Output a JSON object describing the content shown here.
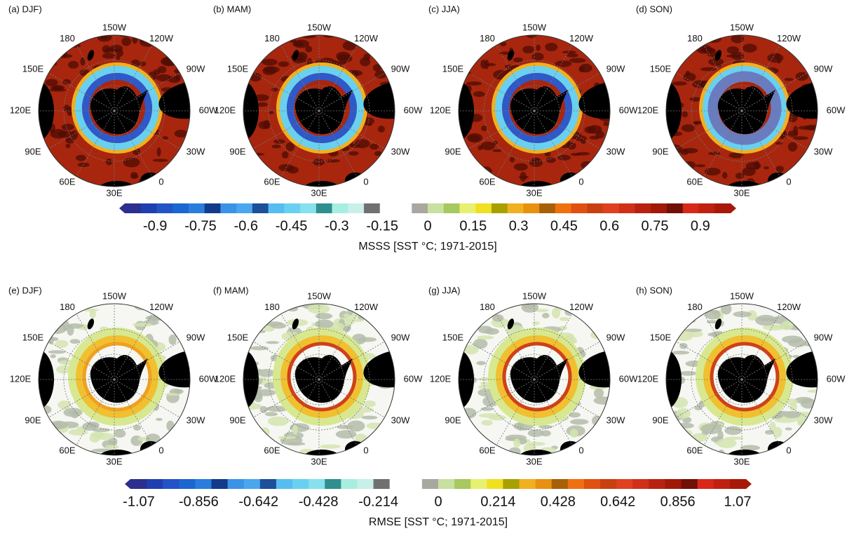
{
  "rows": [
    {
      "panels": [
        "(a) DJF)",
        "(b) MAM)",
        "(c) JJA)",
        "(d) SON)"
      ],
      "colorbar": {
        "label": "MSSS [SST °C; 1971-2015]",
        "lim": [
          -1,
          1
        ],
        "ticks": [
          -0.9,
          -0.75,
          -0.6,
          -0.45,
          -0.3,
          -0.15,
          0,
          0.15,
          0.3,
          0.45,
          0.6,
          0.75,
          0.9
        ],
        "colors": [
          "#2c2f8f",
          "#1f3fae",
          "#2453c8",
          "#1b66d2",
          "#2a7ddc",
          "#143a8c",
          "#3a93e6",
          "#4aa6ee",
          "#1d4f9a",
          "#56bdf0",
          "#6ad0f2",
          "#86e0ee",
          "#2f8f8f",
          "#a8eee0",
          "#c8f0e8",
          "#707070",
          "#ffffff",
          "#ffffff",
          "#a8a8a0",
          "#c8e0a0",
          "#a8c860",
          "#e8f070",
          "#f0e020",
          "#a8a000",
          "#f0b020",
          "#e89010",
          "#a86008",
          "#f07010",
          "#e05010",
          "#c84010",
          "#e04020",
          "#d03018",
          "#b82010",
          "#a01808",
          "#701008",
          "#d82818",
          "#c02010",
          "#a81808"
        ]
      }
    },
    {
      "panels": [
        "(e) DJF)",
        "(f) MAM)",
        "(g) JJA)",
        "(h) SON)"
      ],
      "colorbar": {
        "label": "RMSE [SST °C; 1971-2015]",
        "lim": [
          -1.1,
          1.1
        ],
        "ticks": [
          -1.07,
          -0.856,
          -0.642,
          -0.428,
          -0.214,
          0,
          0.214,
          0.428,
          0.642,
          0.856,
          1.07
        ],
        "colors": [
          "#2c2f8f",
          "#1f3fae",
          "#2453c8",
          "#1b66d2",
          "#2a7ddc",
          "#143a8c",
          "#3a93e6",
          "#4aa6ee",
          "#1d4f9a",
          "#56bdf0",
          "#6ad0f2",
          "#86e0ee",
          "#2f8f8f",
          "#a8eee0",
          "#c8f0e8",
          "#707070",
          "#ffffff",
          "#ffffff",
          "#a8a8a0",
          "#c8e0a0",
          "#a8c860",
          "#e8f070",
          "#f0e020",
          "#a8a000",
          "#f0b020",
          "#e89010",
          "#a86008",
          "#f07010",
          "#e05010",
          "#c84010",
          "#e04020",
          "#d03018",
          "#b82010",
          "#a01808",
          "#701008",
          "#d82818",
          "#c02010",
          "#a81808"
        ]
      }
    }
  ],
  "longitude_labels": [
    "180",
    "150W",
    "120W",
    "90W",
    "60W",
    "30W",
    "0",
    "30E",
    "60E",
    "90E",
    "120E",
    "150E"
  ]
}
